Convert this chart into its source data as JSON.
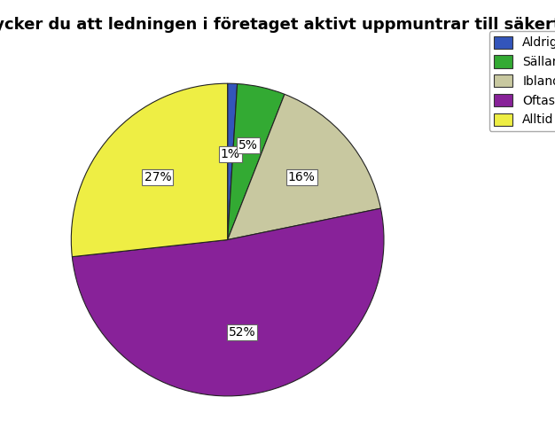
{
  "title": "Tycker du att ledningen i företaget aktivt uppmuntrar till säkert arbete?",
  "labels": [
    "Aldrig",
    "Sällan",
    "Ibland",
    "Oftast",
    "Alltid"
  ],
  "values": [
    1,
    5,
    16,
    52,
    27
  ],
  "colors": [
    "#3355bb",
    "#33aa33",
    "#c8c8a0",
    "#882299",
    "#eeee44"
  ],
  "legend_labels": [
    "Aldrig",
    "Sällan",
    "Ibland",
    "Oftast",
    "Alltid"
  ],
  "startangle": 90,
  "title_fontsize": 13,
  "pct_fontsize": 10,
  "background_color": "#ffffff"
}
